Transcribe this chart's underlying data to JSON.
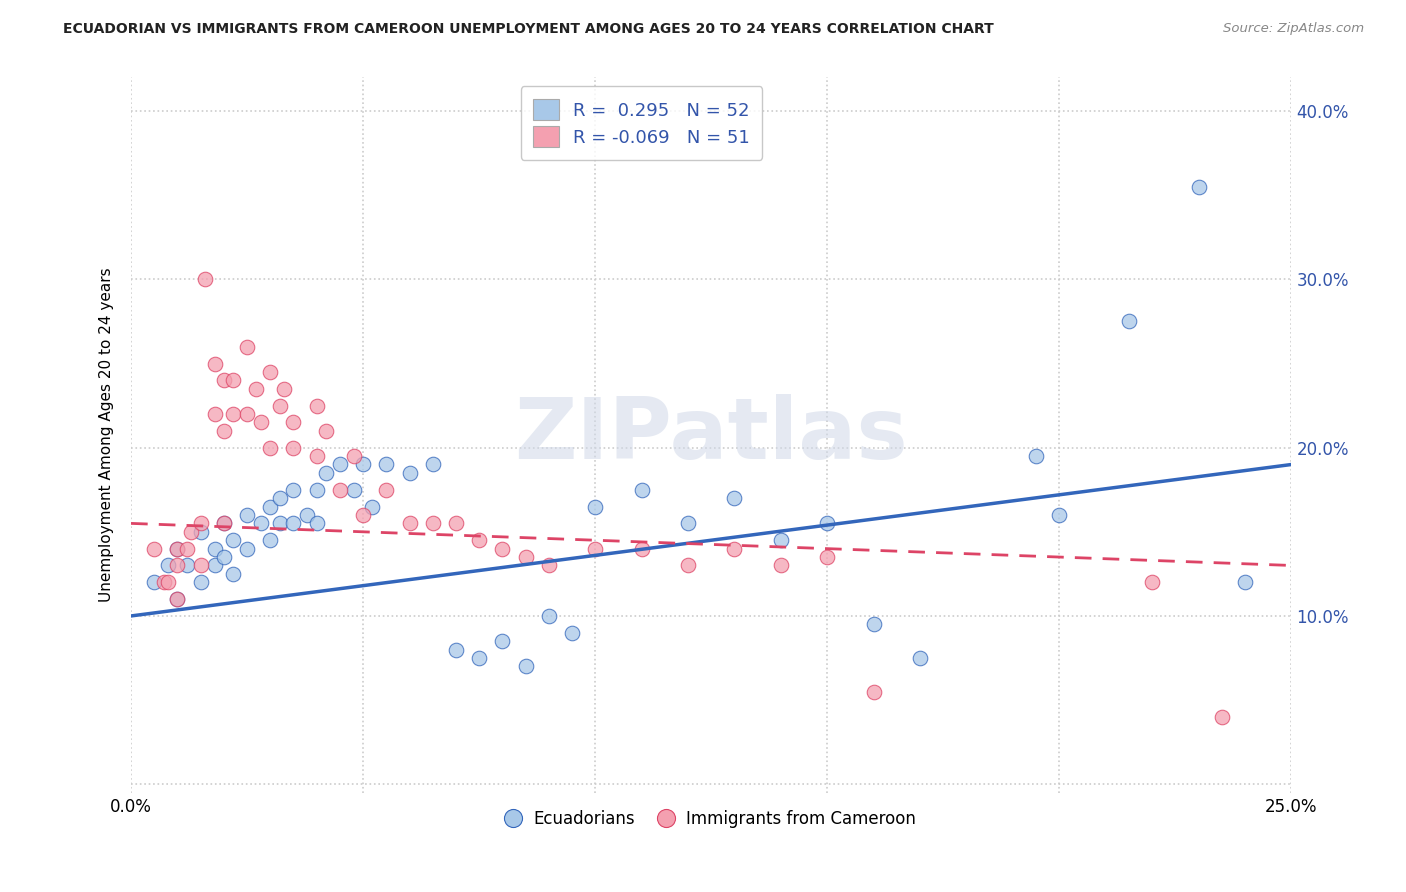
{
  "title": "ECUADORIAN VS IMMIGRANTS FROM CAMEROON UNEMPLOYMENT AMONG AGES 20 TO 24 YEARS CORRELATION CHART",
  "source": "Source: ZipAtlas.com",
  "ylabel": "Unemployment Among Ages 20 to 24 years",
  "xlim": [
    0.0,
    0.25
  ],
  "ylim": [
    -0.005,
    0.42
  ],
  "x_ticks": [
    0.0,
    0.05,
    0.1,
    0.15,
    0.2,
    0.25
  ],
  "y_ticks": [
    0.0,
    0.1,
    0.2,
    0.3,
    0.4
  ],
  "blue_R": 0.295,
  "blue_N": 52,
  "pink_R": -0.069,
  "pink_N": 51,
  "blue_color": "#a8c8e8",
  "pink_color": "#f4a0b0",
  "blue_line_color": "#3366bb",
  "pink_line_color": "#dd4466",
  "legend_label_blue": "Ecuadorians",
  "legend_label_pink": "Immigrants from Cameroon",
  "watermark": "ZIPatlas",
  "background_color": "#ffffff",
  "grid_color": "#cccccc",
  "title_color": "#222222",
  "source_color": "#888888",
  "legend_text_color": "#3355aa",
  "blue_scatter_x": [
    0.005,
    0.008,
    0.01,
    0.01,
    0.012,
    0.015,
    0.015,
    0.018,
    0.018,
    0.02,
    0.02,
    0.022,
    0.022,
    0.025,
    0.025,
    0.028,
    0.03,
    0.03,
    0.032,
    0.032,
    0.035,
    0.035,
    0.038,
    0.04,
    0.04,
    0.042,
    0.045,
    0.048,
    0.05,
    0.052,
    0.055,
    0.06,
    0.065,
    0.07,
    0.075,
    0.08,
    0.085,
    0.09,
    0.095,
    0.1,
    0.11,
    0.12,
    0.13,
    0.14,
    0.15,
    0.16,
    0.17,
    0.195,
    0.2,
    0.215,
    0.23,
    0.24
  ],
  "blue_scatter_y": [
    0.12,
    0.13,
    0.14,
    0.11,
    0.13,
    0.15,
    0.12,
    0.14,
    0.13,
    0.155,
    0.135,
    0.145,
    0.125,
    0.16,
    0.14,
    0.155,
    0.165,
    0.145,
    0.17,
    0.155,
    0.175,
    0.155,
    0.16,
    0.175,
    0.155,
    0.185,
    0.19,
    0.175,
    0.19,
    0.165,
    0.19,
    0.185,
    0.19,
    0.08,
    0.075,
    0.085,
    0.07,
    0.1,
    0.09,
    0.165,
    0.175,
    0.155,
    0.17,
    0.145,
    0.155,
    0.095,
    0.075,
    0.195,
    0.16,
    0.275,
    0.355,
    0.12
  ],
  "pink_scatter_x": [
    0.005,
    0.007,
    0.008,
    0.01,
    0.01,
    0.01,
    0.012,
    0.013,
    0.015,
    0.015,
    0.016,
    0.018,
    0.018,
    0.02,
    0.02,
    0.02,
    0.022,
    0.022,
    0.025,
    0.025,
    0.027,
    0.028,
    0.03,
    0.03,
    0.032,
    0.033,
    0.035,
    0.035,
    0.04,
    0.04,
    0.042,
    0.045,
    0.048,
    0.05,
    0.055,
    0.06,
    0.065,
    0.07,
    0.075,
    0.08,
    0.085,
    0.09,
    0.1,
    0.11,
    0.12,
    0.13,
    0.14,
    0.15,
    0.16,
    0.22,
    0.235
  ],
  "pink_scatter_y": [
    0.14,
    0.12,
    0.12,
    0.13,
    0.14,
    0.11,
    0.14,
    0.15,
    0.155,
    0.13,
    0.3,
    0.25,
    0.22,
    0.21,
    0.24,
    0.155,
    0.22,
    0.24,
    0.22,
    0.26,
    0.235,
    0.215,
    0.2,
    0.245,
    0.225,
    0.235,
    0.215,
    0.2,
    0.225,
    0.195,
    0.21,
    0.175,
    0.195,
    0.16,
    0.175,
    0.155,
    0.155,
    0.155,
    0.145,
    0.14,
    0.135,
    0.13,
    0.14,
    0.14,
    0.13,
    0.14,
    0.13,
    0.135,
    0.055,
    0.12,
    0.04
  ]
}
